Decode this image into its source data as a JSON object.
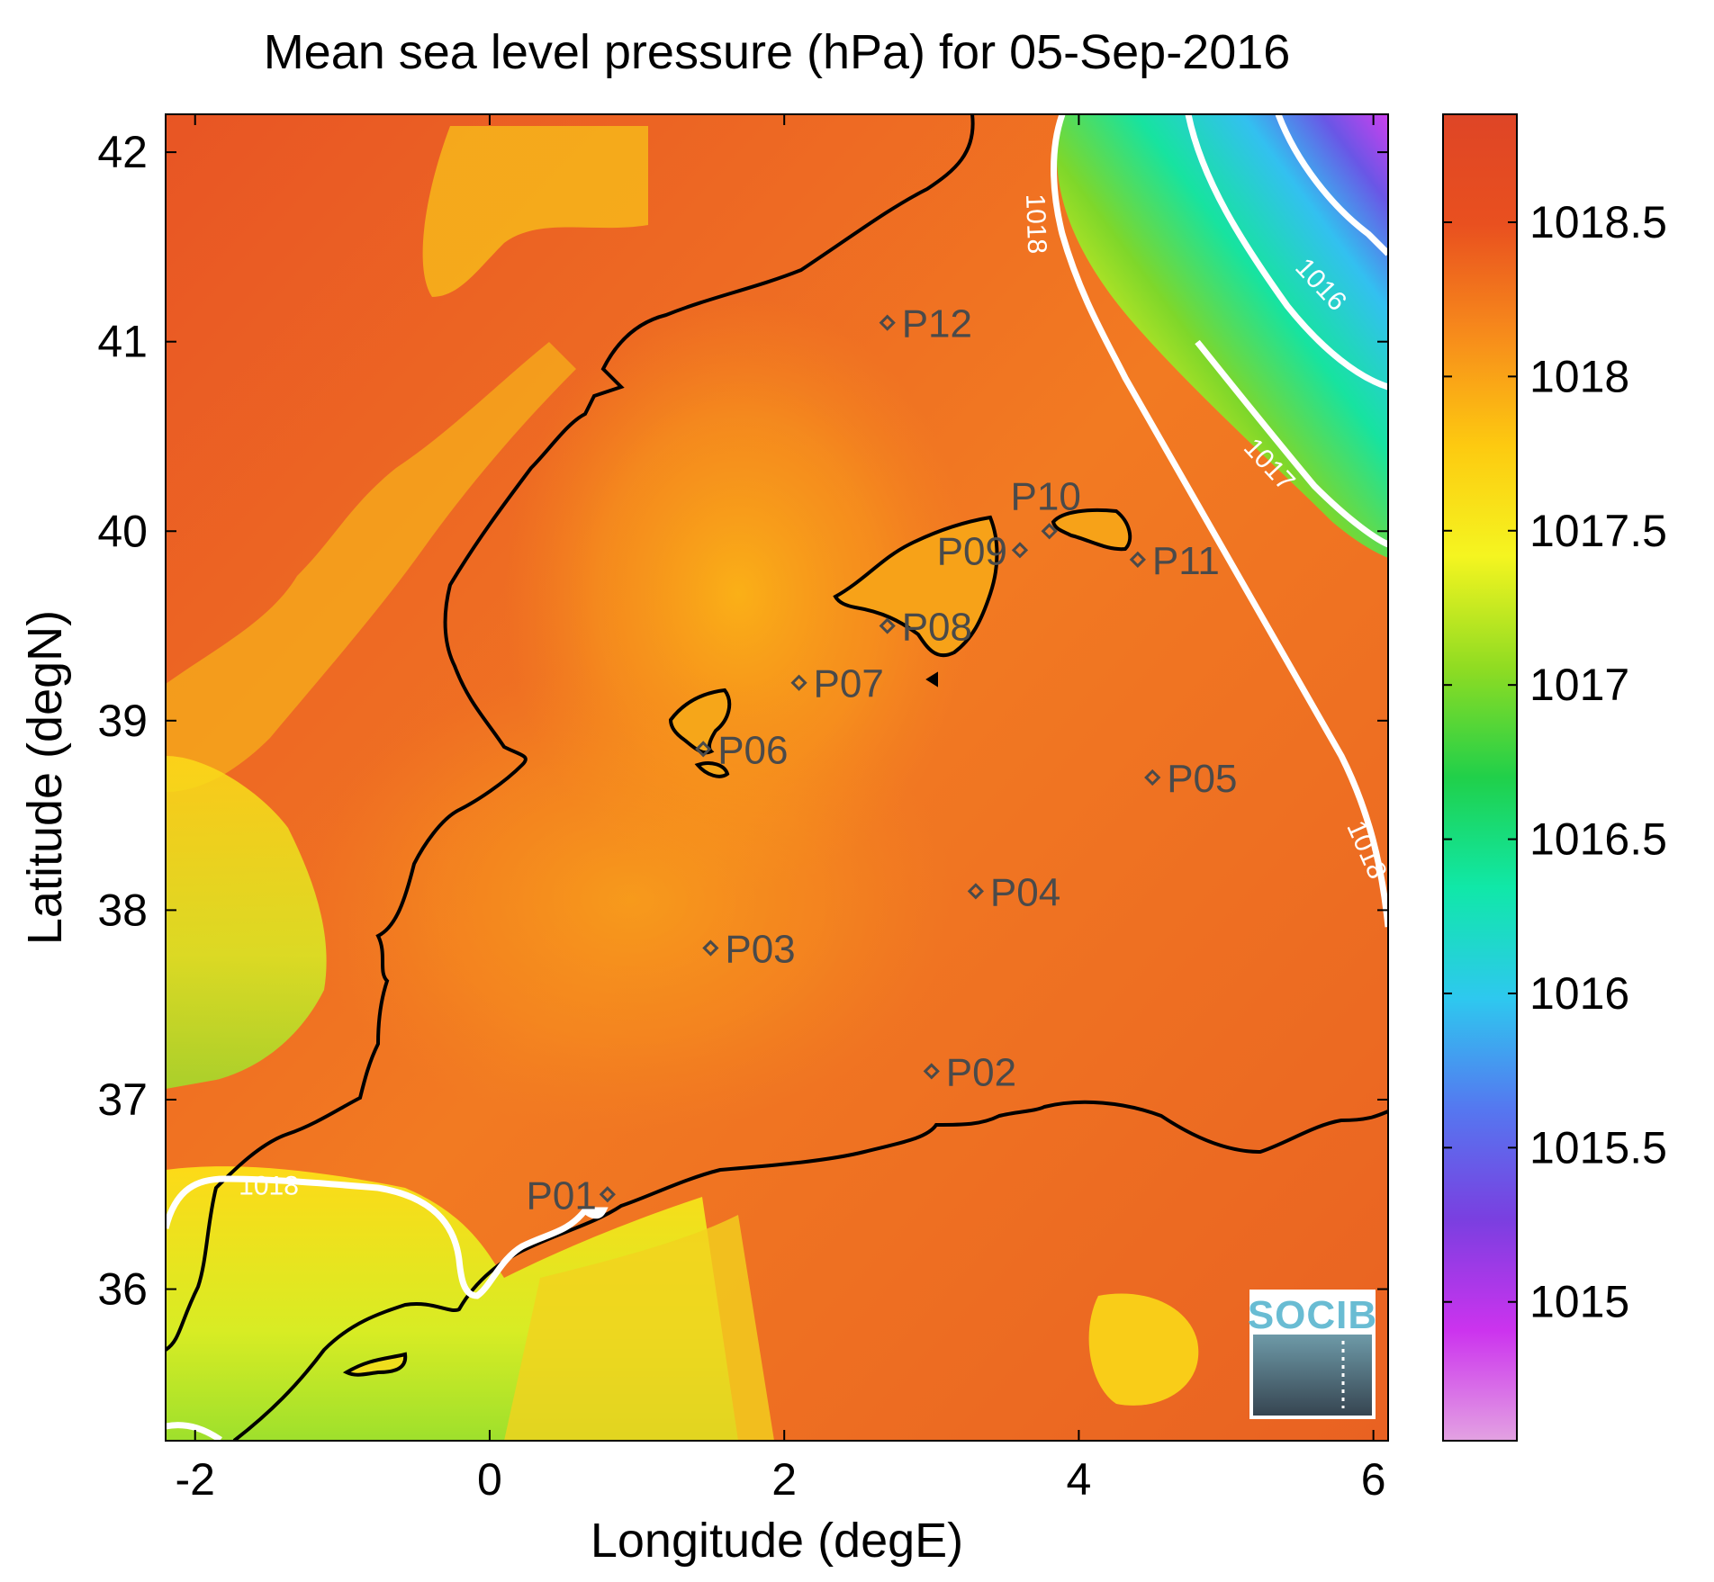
{
  "figure": {
    "title": "Mean sea level pressure (hPa) for 05-Sep-2016",
    "xlabel": "Longitude (degE)",
    "ylabel": "Latitude (degN)"
  },
  "map": {
    "x_ticks": [
      {
        "value": -2,
        "label": "-2"
      },
      {
        "value": 0,
        "label": "0"
      },
      {
        "value": 2,
        "label": "2"
      },
      {
        "value": 4,
        "label": "4"
      },
      {
        "value": 6,
        "label": "6"
      }
    ],
    "y_ticks": [
      {
        "value": 36,
        "label": "36"
      },
      {
        "value": 37,
        "label": "37"
      },
      {
        "value": 38,
        "label": "38"
      },
      {
        "value": 39,
        "label": "39"
      },
      {
        "value": 40,
        "label": "40"
      },
      {
        "value": 41,
        "label": "41"
      },
      {
        "value": 42,
        "label": "42"
      }
    ],
    "xlim": [
      -2.2,
      6.1
    ],
    "ylim": [
      35.2,
      42.2
    ],
    "stations": [
      {
        "id": "P01",
        "lon": 0.8,
        "lat": 36.5
      },
      {
        "id": "P02",
        "lon": 3.0,
        "lat": 37.15
      },
      {
        "id": "P03",
        "lon": 1.5,
        "lat": 37.8
      },
      {
        "id": "P04",
        "lon": 3.3,
        "lat": 38.1
      },
      {
        "id": "P05",
        "lon": 4.5,
        "lat": 38.7
      },
      {
        "id": "P06",
        "lon": 1.45,
        "lat": 38.85
      },
      {
        "id": "P07",
        "lon": 2.1,
        "lat": 39.2
      },
      {
        "id": "P08",
        "lon": 2.7,
        "lat": 39.5
      },
      {
        "id": "P09",
        "lon": 3.6,
        "lat": 39.9
      },
      {
        "id": "P10",
        "lon": 3.8,
        "lat": 40.0
      },
      {
        "id": "P11",
        "lon": 4.4,
        "lat": 39.85
      },
      {
        "id": "P12",
        "lon": 2.7,
        "lat": 41.1
      }
    ],
    "contour_labels": [
      {
        "text": "1018",
        "lon": 3.65,
        "lat": 41.62,
        "rotate": 88
      },
      {
        "text": "1016",
        "lon": 5.6,
        "lat": 41.27,
        "rotate": 47
      },
      {
        "text": "1017",
        "lon": 5.25,
        "lat": 40.32,
        "rotate": 47
      },
      {
        "text": "1018",
        "lon": 5.9,
        "lat": 38.3,
        "rotate": 66
      },
      {
        "text": "1018",
        "lon": -1.5,
        "lat": 36.5,
        "rotate": 0
      }
    ]
  },
  "colorbar": {
    "range": [
      1014.55,
      1018.85
    ],
    "ticks": [
      {
        "value": 1015,
        "label": "1015"
      },
      {
        "value": 1015.5,
        "label": "1015.5"
      },
      {
        "value": 1016,
        "label": "1016"
      },
      {
        "value": 1016.5,
        "label": "1016.5"
      },
      {
        "value": 1017,
        "label": "1017"
      },
      {
        "value": 1017.5,
        "label": "1017.5"
      },
      {
        "value": 1018,
        "label": "1018"
      },
      {
        "value": 1018.5,
        "label": "1018.5"
      }
    ],
    "stops": [
      "#e3a2e2",
      "#cc33ee",
      "#7a3fe0",
      "#5577f0",
      "#2ec8ef",
      "#10e8a8",
      "#20d04a",
      "#90dc22",
      "#f5f520",
      "#fdca10",
      "#f78c1b",
      "#e9501f",
      "#de4526"
    ]
  },
  "logo": {
    "text": "SOCIB"
  }
}
